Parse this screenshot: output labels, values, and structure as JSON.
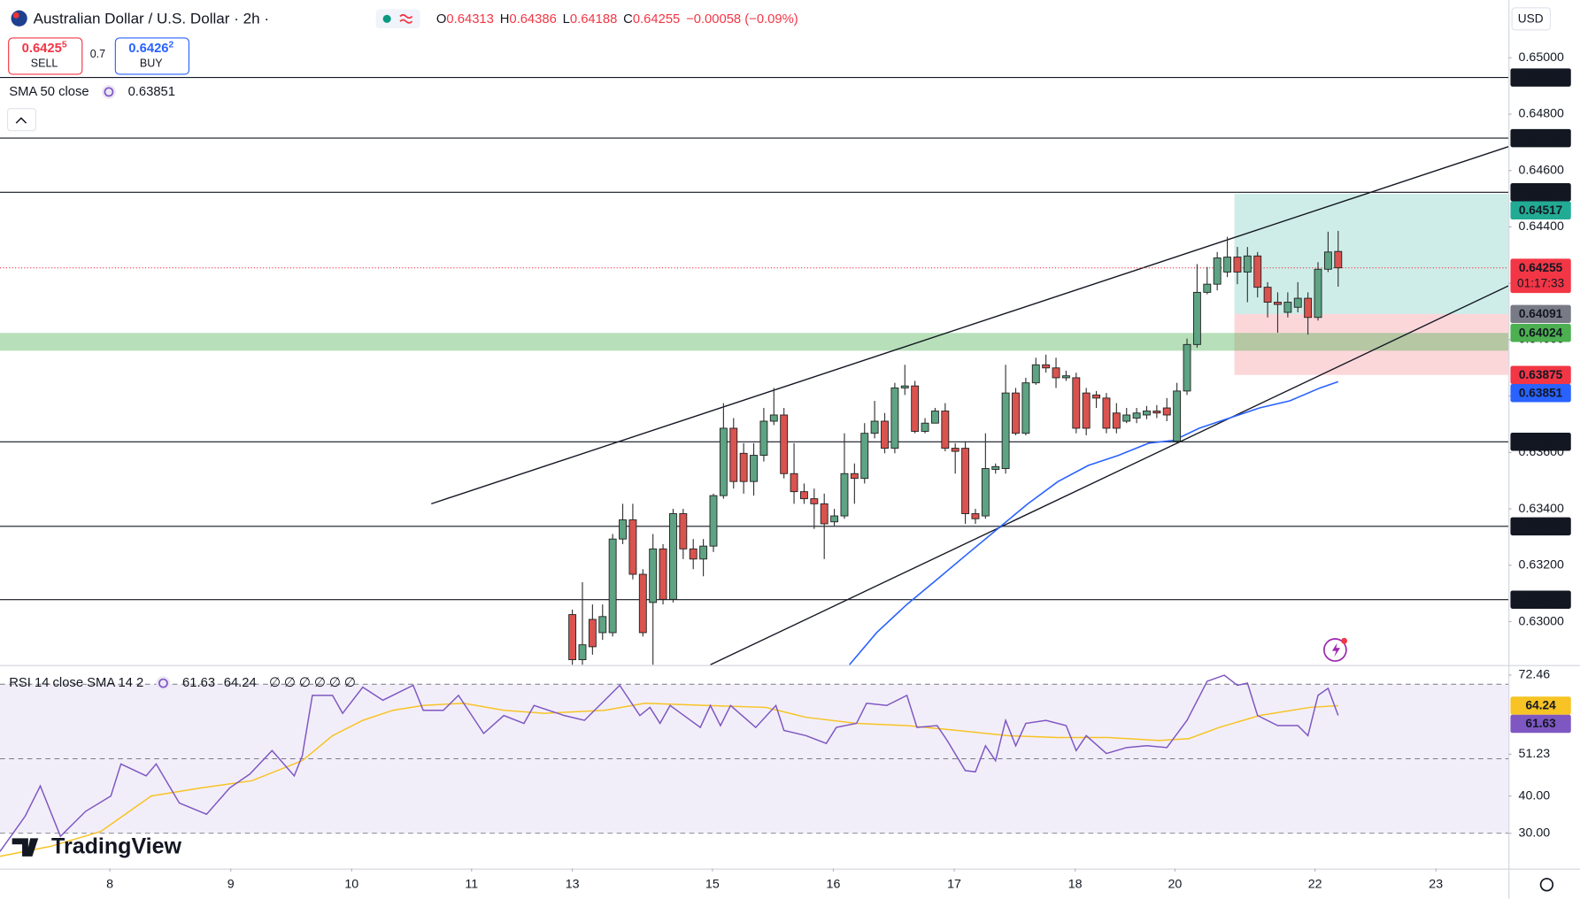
{
  "header": {
    "symbol": "Australian Dollar / U.S. Dollar · 2h ·",
    "ohlc": [
      {
        "key": "O",
        "value": "0.64313"
      },
      {
        "key": "H",
        "value": "0.64386"
      },
      {
        "key": "L",
        "value": "0.64188"
      },
      {
        "key": "C",
        "value": "0.64255"
      }
    ],
    "change": "−0.00058 (−0.09%)",
    "currency": "USD"
  },
  "trade": {
    "sell": {
      "price": "0.6425",
      "pip": "5",
      "label": "SELL"
    },
    "spread": "0.7",
    "buy": {
      "price": "0.6426",
      "pip": "2",
      "label": "BUY"
    }
  },
  "logo": "TradingView",
  "chart_data": [
    {
      "type": "candlestick",
      "up_color": "#5ea383",
      "down_color": "#d9534f",
      "grid": false,
      "open": [
        0.63025,
        0.62865,
        0.63008,
        0.62961,
        0.62961,
        0.63293,
        0.63361,
        0.63168,
        0.63068,
        0.63258,
        0.63079,
        0.63383,
        0.63258,
        0.63222,
        0.63268,
        0.63447,
        0.63686,
        0.63597,
        0.63497,
        0.6359,
        0.63711,
        0.63733,
        0.63525,
        0.63461,
        0.63436,
        0.63418,
        0.63354,
        0.63375,
        0.63525,
        0.63508,
        0.63668,
        0.63711,
        0.63615,
        0.63829,
        0.63836,
        0.63675,
        0.63704,
        0.63747,
        0.63615,
        0.63615,
        0.63383,
        0.63375,
        0.6354,
        0.63543,
        0.63811,
        0.63668,
        0.63847,
        0.63911,
        0.639,
        0.63865,
        0.63865,
        0.63811,
        0.63804,
        0.63793,
        0.6374,
        0.63711,
        0.63722,
        0.63733,
        0.63747,
        0.63758,
        0.6364,
        0.63818,
        0.63983,
        0.64168,
        0.64197,
        0.6424,
        0.64293,
        0.6424,
        0.64297,
        0.64186,
        0.64133,
        0.64097,
        0.64115,
        0.64147,
        0.64079,
        0.6425,
        0.64313
      ],
      "high": [
        0.63043,
        0.6314,
        0.63061,
        0.63061,
        0.63311,
        0.63418,
        0.63418,
        0.63186,
        0.63311,
        0.63275,
        0.634,
        0.634,
        0.63293,
        0.63293,
        0.63454,
        0.63775,
        0.63722,
        0.63633,
        0.63633,
        0.63758,
        0.63829,
        0.63758,
        0.63633,
        0.6349,
        0.63472,
        0.63454,
        0.634,
        0.63668,
        0.63561,
        0.63704,
        0.63783,
        0.6374,
        0.63847,
        0.63911,
        0.63854,
        0.63722,
        0.63758,
        0.63775,
        0.63633,
        0.6364,
        0.634,
        0.63668,
        0.63561,
        0.63911,
        0.63829,
        0.63865,
        0.63936,
        0.63947,
        0.63936,
        0.6389,
        0.63883,
        0.63829,
        0.63818,
        0.63811,
        0.63775,
        0.63758,
        0.63758,
        0.63765,
        0.63768,
        0.63793,
        0.63847,
        0.64004,
        0.64268,
        0.64258,
        0.64311,
        0.64365,
        0.64329,
        0.64329,
        0.64311,
        0.64204,
        0.64168,
        0.64168,
        0.64204,
        0.64168,
        0.64275,
        0.64383,
        0.64386
      ],
      "low": [
        0.62847,
        0.62847,
        0.62883,
        0.62936,
        0.62947,
        0.63275,
        0.6315,
        0.62947,
        0.62847,
        0.63061,
        0.63068,
        0.63222,
        0.63186,
        0.63161,
        0.63247,
        0.63436,
        0.63472,
        0.63454,
        0.63447,
        0.63568,
        0.63697,
        0.63508,
        0.63418,
        0.63418,
        0.63329,
        0.63222,
        0.6334,
        0.63365,
        0.63418,
        0.6349,
        0.6365,
        0.63597,
        0.63597,
        0.63804,
        0.63668,
        0.63668,
        0.63704,
        0.63604,
        0.63525,
        0.63347,
        0.63347,
        0.63365,
        0.63525,
        0.63525,
        0.63661,
        0.63661,
        0.6384,
        0.63883,
        0.63829,
        0.63854,
        0.63668,
        0.63661,
        0.63758,
        0.63668,
        0.63668,
        0.63704,
        0.63704,
        0.63718,
        0.63722,
        0.63711,
        0.63633,
        0.63804,
        0.63972,
        0.64161,
        0.64175,
        0.64222,
        0.64197,
        0.64133,
        0.6415,
        0.64079,
        0.64025,
        0.64079,
        0.64097,
        0.64018,
        0.64068,
        0.6424,
        0.64188
      ],
      "close": [
        0.62865,
        0.62918,
        0.62911,
        0.63018,
        0.63293,
        0.63361,
        0.63168,
        0.62961,
        0.63258,
        0.63079,
        0.63383,
        0.63258,
        0.63222,
        0.63268,
        0.63447,
        0.63686,
        0.63497,
        0.63497,
        0.6359,
        0.63711,
        0.63733,
        0.63525,
        0.63461,
        0.63436,
        0.63418,
        0.63347,
        0.63375,
        0.63525,
        0.63508,
        0.63668,
        0.63711,
        0.63615,
        0.63829,
        0.63836,
        0.63675,
        0.63704,
        0.63747,
        0.63615,
        0.63604,
        0.63383,
        0.63365,
        0.63543,
        0.6355,
        0.63811,
        0.63668,
        0.63847,
        0.63911,
        0.639,
        0.63865,
        0.63872,
        0.63686,
        0.63686,
        0.63793,
        0.63686,
        0.63686,
        0.63733,
        0.6374,
        0.63747,
        0.6374,
        0.63733,
        0.63818,
        0.63983,
        0.64168,
        0.64197,
        0.6429,
        0.64293,
        0.6424,
        0.64297,
        0.64186,
        0.64133,
        0.64125,
        0.64133,
        0.64147,
        0.64079,
        0.6425,
        0.64311,
        0.64255
      ],
      "xlim": [
        -56.8,
        92.9
      ],
      "ylim": [
        0.62846,
        0.65204
      ],
      "xticks": [
        {
          "value": -45.9,
          "label": "8"
        },
        {
          "value": -33.9,
          "label": "9"
        },
        {
          "value": -21.9,
          "label": "10"
        },
        {
          "value": -10,
          "label": "11"
        },
        {
          "value": 0,
          "label": "13"
        },
        {
          "value": 13.9,
          "label": "15"
        },
        {
          "value": 25.9,
          "label": "16"
        },
        {
          "value": 37.9,
          "label": "17"
        },
        {
          "value": 49.9,
          "label": "18"
        },
        {
          "value": 59.8,
          "label": "20"
        },
        {
          "value": 73.7,
          "label": "22"
        },
        {
          "value": 85.7,
          "label": "23"
        }
      ],
      "yticks": [
        {
          "value": 0.65,
          "label": "0.65000"
        },
        {
          "value": 0.648,
          "label": "0.64800"
        },
        {
          "value": 0.646,
          "label": "0.64600"
        },
        {
          "value": 0.644,
          "label": "0.64400"
        },
        {
          "value": 0.642,
          "label": "0.64200"
        },
        {
          "value": 0.64,
          "label": "0.64000"
        },
        {
          "value": 0.638,
          "label": "0.63800"
        },
        {
          "value": 0.636,
          "label": "0.63600"
        },
        {
          "value": 0.634,
          "label": "0.63400"
        },
        {
          "value": 0.632,
          "label": "0.63200"
        },
        {
          "value": 0.63,
          "label": "0.63000"
        }
      ],
      "sma": {
        "name": "SMA 50 close",
        "color": "#2962ff",
        "last_label": "0.63851",
        "x": [
          27.5,
          30.2,
          33.2,
          36.2,
          39.2,
          42.2,
          45.2,
          48.2,
          51.2,
          54.2,
          57.2,
          59.7,
          62.2,
          65.2,
          68.2,
          71.2,
          74.2,
          76
        ],
        "values": [
          0.62847,
          0.62961,
          0.63061,
          0.6315,
          0.6324,
          0.63329,
          0.63418,
          0.63497,
          0.63554,
          0.6359,
          0.63633,
          0.63643,
          0.63686,
          0.63722,
          0.63758,
          0.63783,
          0.63829,
          0.63851
        ]
      },
      "levels": [
        {
          "value": 0.6493,
          "label": "0.64930"
        },
        {
          "value": 0.64715,
          "label": "0.64715"
        },
        {
          "value": 0.64523,
          "label": "0.64523"
        },
        {
          "value": 0.63638,
          "label": "0.63638"
        },
        {
          "value": 0.63338,
          "label": "0.63338"
        },
        {
          "value": 0.63078,
          "label": "0.63078"
        }
      ],
      "zone": {
        "values": [
          0.64024,
          0.63961
        ],
        "label": "0.64024",
        "color": "#4caf50"
      },
      "position": {
        "x": 65.7,
        "target": {
          "value": 0.64517,
          "label": "0.64517",
          "color": "#22ab94"
        },
        "entry": {
          "value": 0.64091,
          "label": "0.64091",
          "color": "#787b86"
        },
        "stop": {
          "value": 0.63875,
          "label": "0.63875",
          "color": "#f23645"
        }
      },
      "last": {
        "value": 0.64255,
        "label": "0.64255",
        "countdown": "01:17:33",
        "color": "#f23645"
      },
      "trendlines": [
        {
          "x": [
            -14,
            93
          ],
          "values": [
            0.63418,
            0.64686
          ]
        },
        {
          "x": [
            13.7,
            93
          ],
          "values": [
            0.62847,
            0.64193
          ]
        }
      ]
    },
    {
      "type": "line",
      "title": "RSI 14 close SMA 14 2",
      "inputs": "∅ ∅ ∅ ∅ ∅ ∅",
      "xlim": [
        -56.8,
        92.9
      ],
      "ylim": [
        20.54,
        75.14
      ],
      "yticks": [
        {
          "value": 72.46,
          "label": "72.46"
        },
        {
          "value": 51.23,
          "label": "51.23"
        },
        {
          "value": 40,
          "label": "40.00"
        },
        {
          "value": 30,
          "label": "30.00"
        }
      ],
      "bands": [
        30,
        50,
        70
      ],
      "series": [
        {
          "color": "#7e57c2",
          "last_label": "61.63",
          "x": [
            -56.8,
            -54.3,
            -52.8,
            -50.8,
            -48.3,
            -45.8,
            -44.8,
            -42.3,
            -41.3,
            -39,
            -36.3,
            -34,
            -32,
            -29.8,
            -27.6,
            -26.8,
            -25.8,
            -23.8,
            -22.8,
            -20.8,
            -18.8,
            -15.8,
            -14.8,
            -12.8,
            -11.3,
            -8.8,
            -6.8,
            -4.8,
            -3.8,
            -0.8,
            1.2,
            3.7,
            4.7,
            6.7,
            7.7,
            8.7,
            9.7,
            12.7,
            13.7,
            14.7,
            15.7,
            18.2,
            20.2,
            21,
            23.2,
            25.2,
            26.2,
            28.2,
            29.2,
            31.2,
            33.2,
            34.2,
            36.2,
            37.2,
            39,
            40,
            41,
            42,
            43,
            44,
            45,
            47,
            49,
            50,
            51,
            53,
            55,
            57,
            59,
            61,
            63,
            64.7,
            66,
            67,
            68,
            70,
            72,
            73,
            74,
            75,
            76
          ],
          "values": [
            25.1,
            34.6,
            42.7,
            29.2,
            35.9,
            40.0,
            48.6,
            45.4,
            48.6,
            38.1,
            35.1,
            42.2,
            45.9,
            52.2,
            45.4,
            50.8,
            67.0,
            67.0,
            62.2,
            69.2,
            65.7,
            69.7,
            63.0,
            63.0,
            67.0,
            56.8,
            61.6,
            59.5,
            64.3,
            61.6,
            60.3,
            67.0,
            69.7,
            61.6,
            63.8,
            59.5,
            64.3,
            58.4,
            64.3,
            58.9,
            64.3,
            58.4,
            64.3,
            57.6,
            56.2,
            54.1,
            58.4,
            59.5,
            64.9,
            64.3,
            67.0,
            58.4,
            58.9,
            54.9,
            46.8,
            46.5,
            53.5,
            49.5,
            60.3,
            53.5,
            59.5,
            60.3,
            58.9,
            52.2,
            56.2,
            51.4,
            53.0,
            53.5,
            53.0,
            60.3,
            70.8,
            72.4,
            69.7,
            70.3,
            61.6,
            58.9,
            58.9,
            56.2,
            67.0,
            68.9,
            61.63
          ]
        },
        {
          "color": "#f7c325",
          "last_label": "64.24",
          "x": [
            -56.8,
            -51.8,
            -46.8,
            -41.8,
            -36.8,
            -31.8,
            -26.8,
            -23.8,
            -20.8,
            -17.8,
            -14.8,
            -10.8,
            -6.8,
            -2.8,
            3.2,
            7.2,
            13.2,
            19.2,
            23.2,
            28.2,
            33.2,
            38.2,
            43.2,
            48.2,
            53.2,
            58.2,
            61.2,
            64.2,
            68.2,
            73.2,
            76
          ],
          "values": [
            23.8,
            26.5,
            30.5,
            40.0,
            42.2,
            44.1,
            49.5,
            56.2,
            60.3,
            63.0,
            64.3,
            64.9,
            63.0,
            62.2,
            63.0,
            64.9,
            64.3,
            63.8,
            61.1,
            59.5,
            58.9,
            57.6,
            56.2,
            55.7,
            55.7,
            54.9,
            55.4,
            58.4,
            61.6,
            63.8,
            64.24
          ]
        }
      ]
    }
  ]
}
